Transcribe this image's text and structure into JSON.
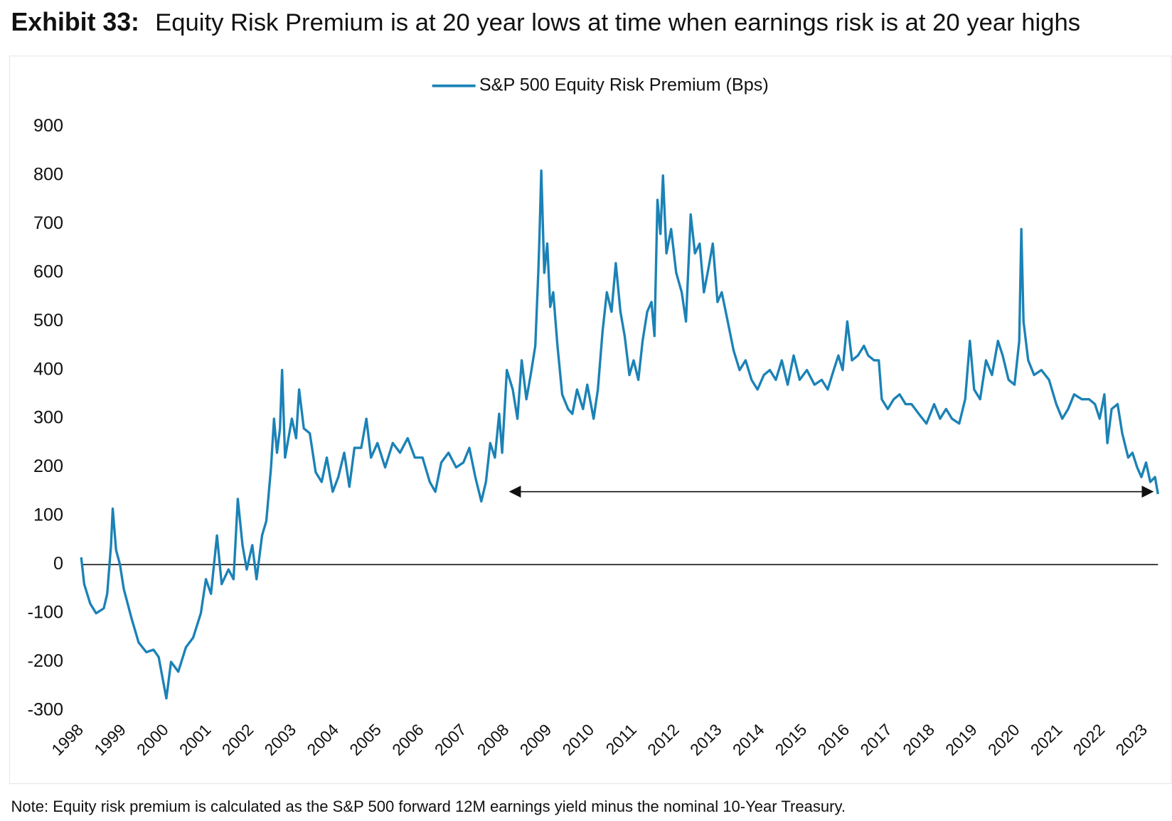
{
  "chart_data": {
    "type": "line",
    "title_label": "Exhibit 33:",
    "title": "Equity Risk Premium is at 20 year lows at time when earnings risk is at 20 year highs",
    "note": "Note: Equity risk premium is calculated as the S&P 500 forward 12M earnings yield minus the nominal 10-Year Treasury.",
    "legend": "top",
    "zero_line": true,
    "ylim": [
      -300,
      900
    ],
    "yticks": [
      -300,
      -200,
      -100,
      0,
      100,
      200,
      300,
      400,
      500,
      600,
      700,
      800,
      900
    ],
    "xlim": [
      1998,
      2023.3
    ],
    "xticks": [
      1998,
      1999,
      2000,
      2001,
      2002,
      2003,
      2004,
      2005,
      2006,
      2007,
      2008,
      2009,
      2010,
      2011,
      2012,
      2013,
      2014,
      2015,
      2016,
      2017,
      2018,
      2019,
      2020,
      2021,
      2022,
      2023
    ],
    "arrow": {
      "x": [
        2008.05,
        2023.2
      ],
      "y": 150
    },
    "x": [
      1998.0,
      1998.07,
      1998.21,
      1998.35,
      1998.53,
      1998.61,
      1998.7,
      1998.74,
      1998.82,
      1998.91,
      1999.0,
      1999.18,
      1999.35,
      1999.53,
      1999.7,
      1999.82,
      2000.0,
      2000.11,
      2000.28,
      2000.46,
      2000.63,
      2000.81,
      2000.93,
      2001.05,
      2001.19,
      2001.3,
      2001.46,
      2001.58,
      2001.68,
      2001.79,
      2001.89,
      2002.02,
      2002.12,
      2002.25,
      2002.35,
      2002.46,
      2002.53,
      2002.6,
      2002.67,
      2002.72,
      2002.79,
      2002.95,
      2003.05,
      2003.12,
      2003.23,
      2003.37,
      2003.51,
      2003.65,
      2003.77,
      2003.91,
      2004.04,
      2004.18,
      2004.3,
      2004.42,
      2004.58,
      2004.7,
      2004.81,
      2004.96,
      2005.14,
      2005.32,
      2005.49,
      2005.67,
      2005.84,
      2006.02,
      2006.19,
      2006.32,
      2006.46,
      2006.63,
      2006.81,
      2006.98,
      2007.12,
      2007.26,
      2007.4,
      2007.51,
      2007.61,
      2007.72,
      2007.82,
      2007.89,
      2008.0,
      2008.14,
      2008.25,
      2008.35,
      2008.46,
      2008.56,
      2008.67,
      2008.74,
      2008.77,
      2008.81,
      2008.88,
      2008.95,
      2009.02,
      2009.09,
      2009.19,
      2009.3,
      2009.44,
      2009.54,
      2009.65,
      2009.79,
      2009.89,
      2010.04,
      2010.14,
      2010.25,
      2010.35,
      2010.46,
      2010.56,
      2010.67,
      2010.77,
      2010.88,
      2010.98,
      2011.09,
      2011.19,
      2011.3,
      2011.4,
      2011.47,
      2011.54,
      2011.61,
      2011.67,
      2011.75,
      2011.86,
      2011.98,
      2012.11,
      2012.21,
      2012.32,
      2012.42,
      2012.53,
      2012.63,
      2012.74,
      2012.84,
      2012.95,
      2013.05,
      2013.19,
      2013.33,
      2013.47,
      2013.61,
      2013.75,
      2013.89,
      2014.04,
      2014.18,
      2014.32,
      2014.46,
      2014.6,
      2014.74,
      2014.88,
      2015.05,
      2015.23,
      2015.4,
      2015.54,
      2015.68,
      2015.79,
      2015.89,
      2016.0,
      2016.11,
      2016.25,
      2016.39,
      2016.49,
      2016.63,
      2016.74,
      2016.81,
      2016.95,
      2017.09,
      2017.23,
      2017.37,
      2017.51,
      2017.68,
      2017.86,
      2018.04,
      2018.18,
      2018.32,
      2018.46,
      2018.63,
      2018.77,
      2018.88,
      2018.98,
      2019.12,
      2019.26,
      2019.4,
      2019.54,
      2019.65,
      2019.79,
      2019.93,
      2020.04,
      2020.09,
      2020.14,
      2020.25,
      2020.39,
      2020.56,
      2020.74,
      2020.91,
      2021.05,
      2021.19,
      2021.33,
      2021.51,
      2021.68,
      2021.82,
      2021.93,
      2022.04,
      2022.11,
      2022.21,
      2022.35,
      2022.46,
      2022.6,
      2022.7,
      2022.81,
      2022.91,
      2023.02,
      2023.12,
      2023.23,
      2023.3
    ],
    "series": [
      {
        "name": "S&P 500 Equity Risk Premium (Bps)",
        "color": "#1b82b6",
        "values": [
          15,
          -40,
          -80,
          -100,
          -90,
          -60,
          40,
          115,
          30,
          0,
          -50,
          -110,
          -160,
          -180,
          -175,
          -190,
          -275,
          -200,
          -220,
          -170,
          -150,
          -100,
          -30,
          -60,
          60,
          -40,
          -10,
          -30,
          135,
          40,
          -10,
          40,
          -30,
          60,
          90,
          200,
          300,
          230,
          280,
          400,
          220,
          300,
          260,
          360,
          280,
          270,
          190,
          170,
          220,
          150,
          180,
          230,
          160,
          240,
          240,
          300,
          220,
          250,
          200,
          250,
          230,
          260,
          220,
          220,
          170,
          150,
          210,
          230,
          200,
          210,
          240,
          180,
          130,
          170,
          250,
          220,
          310,
          230,
          400,
          360,
          300,
          420,
          340,
          390,
          450,
          600,
          680,
          810,
          600,
          660,
          530,
          560,
          450,
          350,
          320,
          310,
          360,
          320,
          370,
          300,
          360,
          480,
          560,
          520,
          620,
          520,
          470,
          390,
          420,
          380,
          460,
          520,
          540,
          470,
          750,
          680,
          800,
          640,
          690,
          600,
          560,
          500,
          720,
          640,
          660,
          560,
          610,
          660,
          540,
          560,
          500,
          440,
          400,
          420,
          380,
          360,
          390,
          400,
          380,
          420,
          370,
          430,
          380,
          400,
          370,
          380,
          360,
          400,
          430,
          400,
          500,
          420,
          430,
          450,
          430,
          420,
          420,
          340,
          320,
          340,
          350,
          330,
          330,
          310,
          290,
          330,
          300,
          320,
          300,
          290,
          340,
          460,
          360,
          340,
          420,
          390,
          460,
          430,
          380,
          370,
          460,
          690,
          500,
          420,
          390,
          400,
          380,
          330,
          300,
          320,
          350,
          340,
          340,
          330,
          300,
          350,
          250,
          320,
          330,
          270,
          220,
          230,
          200,
          180,
          210,
          170,
          180,
          145
        ]
      }
    ]
  }
}
